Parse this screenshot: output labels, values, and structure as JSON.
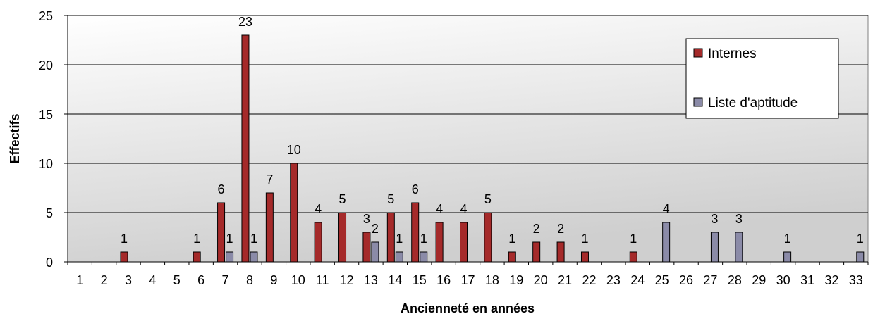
{
  "chart_data": {
    "type": "bar",
    "title": "",
    "xlabel": "Ancienneté en années",
    "ylabel": "Effectifs",
    "ylim": [
      0,
      25
    ],
    "yticks": [
      0,
      5,
      10,
      15,
      20,
      25
    ],
    "grid": true,
    "legend_position": "top-right",
    "categories": [
      "1",
      "2",
      "3",
      "4",
      "5",
      "6",
      "7",
      "8",
      "9",
      "10",
      "11",
      "12",
      "13",
      "14",
      "15",
      "16",
      "17",
      "18",
      "19",
      "20",
      "21",
      "22",
      "23",
      "24",
      "25",
      "26",
      "27",
      "28",
      "29",
      "30",
      "31",
      "32",
      "33"
    ],
    "series": [
      {
        "name": "Internes",
        "color": "#a52a2a",
        "values": [
          null,
          null,
          1,
          null,
          null,
          1,
          6,
          23,
          7,
          10,
          4,
          5,
          3,
          5,
          6,
          4,
          4,
          5,
          1,
          2,
          2,
          1,
          null,
          1,
          null,
          null,
          null,
          null,
          null,
          null,
          null,
          null,
          null
        ]
      },
      {
        "name": "Liste d'aptitude",
        "color": "#8b8ba8",
        "values": [
          null,
          null,
          null,
          null,
          null,
          null,
          1,
          1,
          null,
          null,
          null,
          null,
          2,
          1,
          1,
          null,
          null,
          null,
          null,
          null,
          null,
          null,
          null,
          null,
          4,
          null,
          3,
          3,
          null,
          1,
          null,
          null,
          1
        ]
      }
    ]
  }
}
